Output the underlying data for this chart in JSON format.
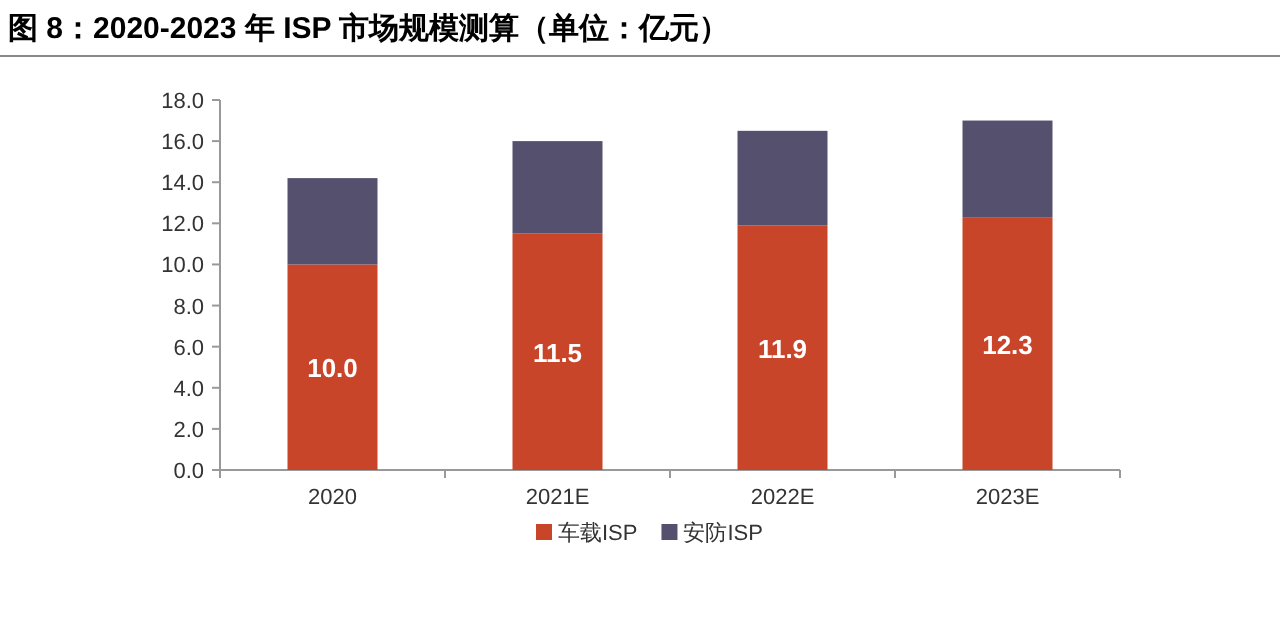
{
  "chart_data": {
    "type": "bar",
    "title": "图 8：2020-2023 年 ISP 市场规模测算（单位：亿元）",
    "stacked": true,
    "categories": [
      "2020",
      "2021E",
      "2022E",
      "2023E"
    ],
    "series": [
      {
        "name": "车载ISP",
        "color": "#c8452a",
        "values": [
          10.0,
          11.5,
          11.9,
          12.3
        ],
        "value_labels": [
          "10.0",
          "11.5",
          "11.9",
          "12.3"
        ]
      },
      {
        "name": "安防ISP",
        "color": "#56506f",
        "values": [
          4.2,
          4.5,
          4.6,
          4.7
        ]
      }
    ],
    "ylim": [
      0,
      18
    ],
    "yticks": [
      {
        "value": 0,
        "label": "0.0"
      },
      {
        "value": 2,
        "label": "2.0"
      },
      {
        "value": 4,
        "label": "4.0"
      },
      {
        "value": 6,
        "label": "6.0"
      },
      {
        "value": 8,
        "label": "8.0"
      },
      {
        "value": 10,
        "label": "10.0"
      },
      {
        "value": 12,
        "label": "12.0"
      },
      {
        "value": 14,
        "label": "14.0"
      },
      {
        "value": 16,
        "label": "16.0"
      },
      {
        "value": 18,
        "label": "18.0"
      }
    ],
    "grid": false,
    "legend": "bottom"
  }
}
